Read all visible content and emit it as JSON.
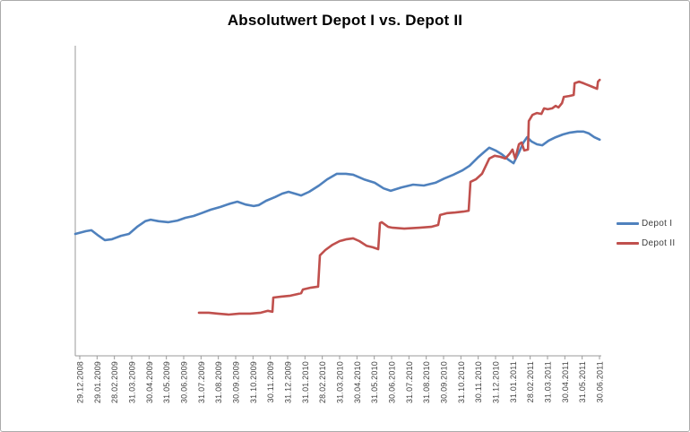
{
  "frame": {
    "background": "#ffffff",
    "border_color": "#ababab"
  },
  "chart_data": {
    "type": "line",
    "title": "Absolutwert Depot I vs. Depot II",
    "colors": {
      "axis": "#9a9a9a",
      "tick_label": "#3f3f3f",
      "title_text": "#000000",
      "legend_text": "#404040"
    },
    "x_axis": {
      "tick_labels": [
        "29.12.2008",
        "29.01.2009",
        "28.02.2009",
        "31.03.2009",
        "30.04.2009",
        "31.05.2009",
        "30.06.2009",
        "31.07.2009",
        "31.08.2009",
        "30.09.2009",
        "31.10.2009",
        "30.11.2009",
        "31.12.2009",
        "31.01.2010",
        "28.02.2010",
        "31.03.2010",
        "30.04.2010",
        "31.05.2010",
        "30.06.2010",
        "31.07.2010",
        "31.08.2010",
        "30.09.2010",
        "31.10.2010",
        "30.11.2010",
        "31.12.2010",
        "31.01.2011",
        "28.02.2011",
        "31.03.2011",
        "30.04.2011",
        "31.05.2011",
        "30.06.2011"
      ]
    },
    "y_axis": {
      "labels": [],
      "labels_visible": false,
      "note": "y-axis line drawn without tick labels; series values below are relative 0-100 of plot height"
    },
    "legend": {
      "position": "right",
      "entries": [
        "Depot I",
        "Depot II"
      ]
    },
    "series": [
      {
        "id": "depot-i",
        "name": "Depot I",
        "color": "#4f81bd",
        "points": [
          [
            -0.26,
            39.3
          ],
          [
            0.36,
            40.2
          ],
          [
            0.67,
            40.5
          ],
          [
            1.09,
            38.7
          ],
          [
            1.45,
            37.3
          ],
          [
            1.86,
            37.6
          ],
          [
            2.38,
            38.7
          ],
          [
            2.84,
            39.3
          ],
          [
            3.31,
            41.6
          ],
          [
            3.78,
            43.4
          ],
          [
            4.09,
            43.9
          ],
          [
            4.55,
            43.4
          ],
          [
            5.12,
            43.1
          ],
          [
            5.64,
            43.6
          ],
          [
            6.1,
            44.5
          ],
          [
            6.57,
            45.1
          ],
          [
            7.03,
            46
          ],
          [
            7.55,
            47.1
          ],
          [
            8.12,
            48
          ],
          [
            8.69,
            49.1
          ],
          [
            9.1,
            49.7
          ],
          [
            9.57,
            48.8
          ],
          [
            10.04,
            48.3
          ],
          [
            10.34,
            48.6
          ],
          [
            10.76,
            50
          ],
          [
            11.28,
            51.2
          ],
          [
            11.69,
            52.3
          ],
          [
            12.05,
            52.9
          ],
          [
            12.41,
            52.3
          ],
          [
            12.78,
            51.7
          ],
          [
            13.24,
            52.9
          ],
          [
            13.81,
            54.9
          ],
          [
            14.28,
            56.9
          ],
          [
            14.84,
            58.7
          ],
          [
            15.36,
            58.7
          ],
          [
            15.78,
            58.4
          ],
          [
            16.4,
            56.9
          ],
          [
            17.02,
            55.8
          ],
          [
            17.54,
            54
          ],
          [
            17.95,
            53.2
          ],
          [
            18.57,
            54.3
          ],
          [
            19.24,
            55.2
          ],
          [
            19.86,
            54.9
          ],
          [
            20.53,
            55.8
          ],
          [
            21.05,
            57.2
          ],
          [
            21.57,
            58.4
          ],
          [
            22.09,
            59.8
          ],
          [
            22.5,
            61.3
          ],
          [
            22.97,
            63.9
          ],
          [
            23.38,
            65.9
          ],
          [
            23.64,
            67.1
          ],
          [
            24,
            66.2
          ],
          [
            24.36,
            65
          ],
          [
            24.73,
            63.3
          ],
          [
            25.04,
            62.1
          ],
          [
            25.35,
            65.6
          ],
          [
            25.61,
            68.8
          ],
          [
            25.82,
            70.5
          ],
          [
            26.08,
            69.1
          ],
          [
            26.39,
            68.2
          ],
          [
            26.7,
            67.9
          ],
          [
            27.06,
            69.4
          ],
          [
            27.47,
            70.5
          ],
          [
            27.89,
            71.4
          ],
          [
            28.3,
            72
          ],
          [
            28.72,
            72.3
          ],
          [
            29.08,
            72.3
          ],
          [
            29.39,
            71.7
          ],
          [
            29.7,
            70.5
          ],
          [
            30.01,
            69.7
          ]
        ]
      },
      {
        "id": "depot-ii",
        "name": "Depot II",
        "color": "#c0504d",
        "points": [
          [
            6.88,
            13.9
          ],
          [
            7.45,
            13.9
          ],
          [
            7.97,
            13.6
          ],
          [
            8.59,
            13.3
          ],
          [
            9.21,
            13.6
          ],
          [
            9.83,
            13.6
          ],
          [
            10.45,
            13.9
          ],
          [
            10.86,
            14.5
          ],
          [
            11.12,
            14.2
          ],
          [
            11.17,
            18.8
          ],
          [
            11.64,
            19.1
          ],
          [
            12.16,
            19.4
          ],
          [
            12.57,
            19.9
          ],
          [
            12.78,
            20.2
          ],
          [
            12.88,
            21.4
          ],
          [
            13.35,
            22
          ],
          [
            13.76,
            22.3
          ],
          [
            13.86,
            32.4
          ],
          [
            14.17,
            34.1
          ],
          [
            14.59,
            35.8
          ],
          [
            15,
            37
          ],
          [
            15.41,
            37.6
          ],
          [
            15.78,
            37.9
          ],
          [
            16.14,
            37
          ],
          [
            16.55,
            35.5
          ],
          [
            16.91,
            35
          ],
          [
            17.23,
            34.4
          ],
          [
            17.33,
            42.8
          ],
          [
            17.43,
            43.1
          ],
          [
            17.8,
            41.6
          ],
          [
            18.06,
            41.3
          ],
          [
            18.73,
            41
          ],
          [
            19.61,
            41.3
          ],
          [
            20.28,
            41.6
          ],
          [
            20.69,
            42.2
          ],
          [
            20.8,
            45.4
          ],
          [
            21.21,
            46
          ],
          [
            21.68,
            46.2
          ],
          [
            22.14,
            46.5
          ],
          [
            22.45,
            46.8
          ],
          [
            22.55,
            56.1
          ],
          [
            22.86,
            56.9
          ],
          [
            23.22,
            58.7
          ],
          [
            23.64,
            63.6
          ],
          [
            23.95,
            64.5
          ],
          [
            24.26,
            64.2
          ],
          [
            24.57,
            63.6
          ],
          [
            24.83,
            65.3
          ],
          [
            24.98,
            66.5
          ],
          [
            25.14,
            63.6
          ],
          [
            25.35,
            68.2
          ],
          [
            25.5,
            68.8
          ],
          [
            25.66,
            66.2
          ],
          [
            25.87,
            66.5
          ],
          [
            25.92,
            75.7
          ],
          [
            26.13,
            77.7
          ],
          [
            26.39,
            78.3
          ],
          [
            26.65,
            78
          ],
          [
            26.8,
            79.8
          ],
          [
            27.01,
            79.5
          ],
          [
            27.27,
            79.8
          ],
          [
            27.47,
            80.6
          ],
          [
            27.63,
            80.1
          ],
          [
            27.84,
            81.5
          ],
          [
            27.94,
            83.5
          ],
          [
            28.25,
            83.8
          ],
          [
            28.51,
            84.1
          ],
          [
            28.56,
            87.9
          ],
          [
            28.82,
            88.4
          ],
          [
            29.08,
            87.9
          ],
          [
            29.34,
            87.3
          ],
          [
            29.6,
            86.7
          ],
          [
            29.86,
            86.1
          ],
          [
            29.91,
            88.4
          ],
          [
            30.01,
            89
          ]
        ]
      }
    ]
  }
}
